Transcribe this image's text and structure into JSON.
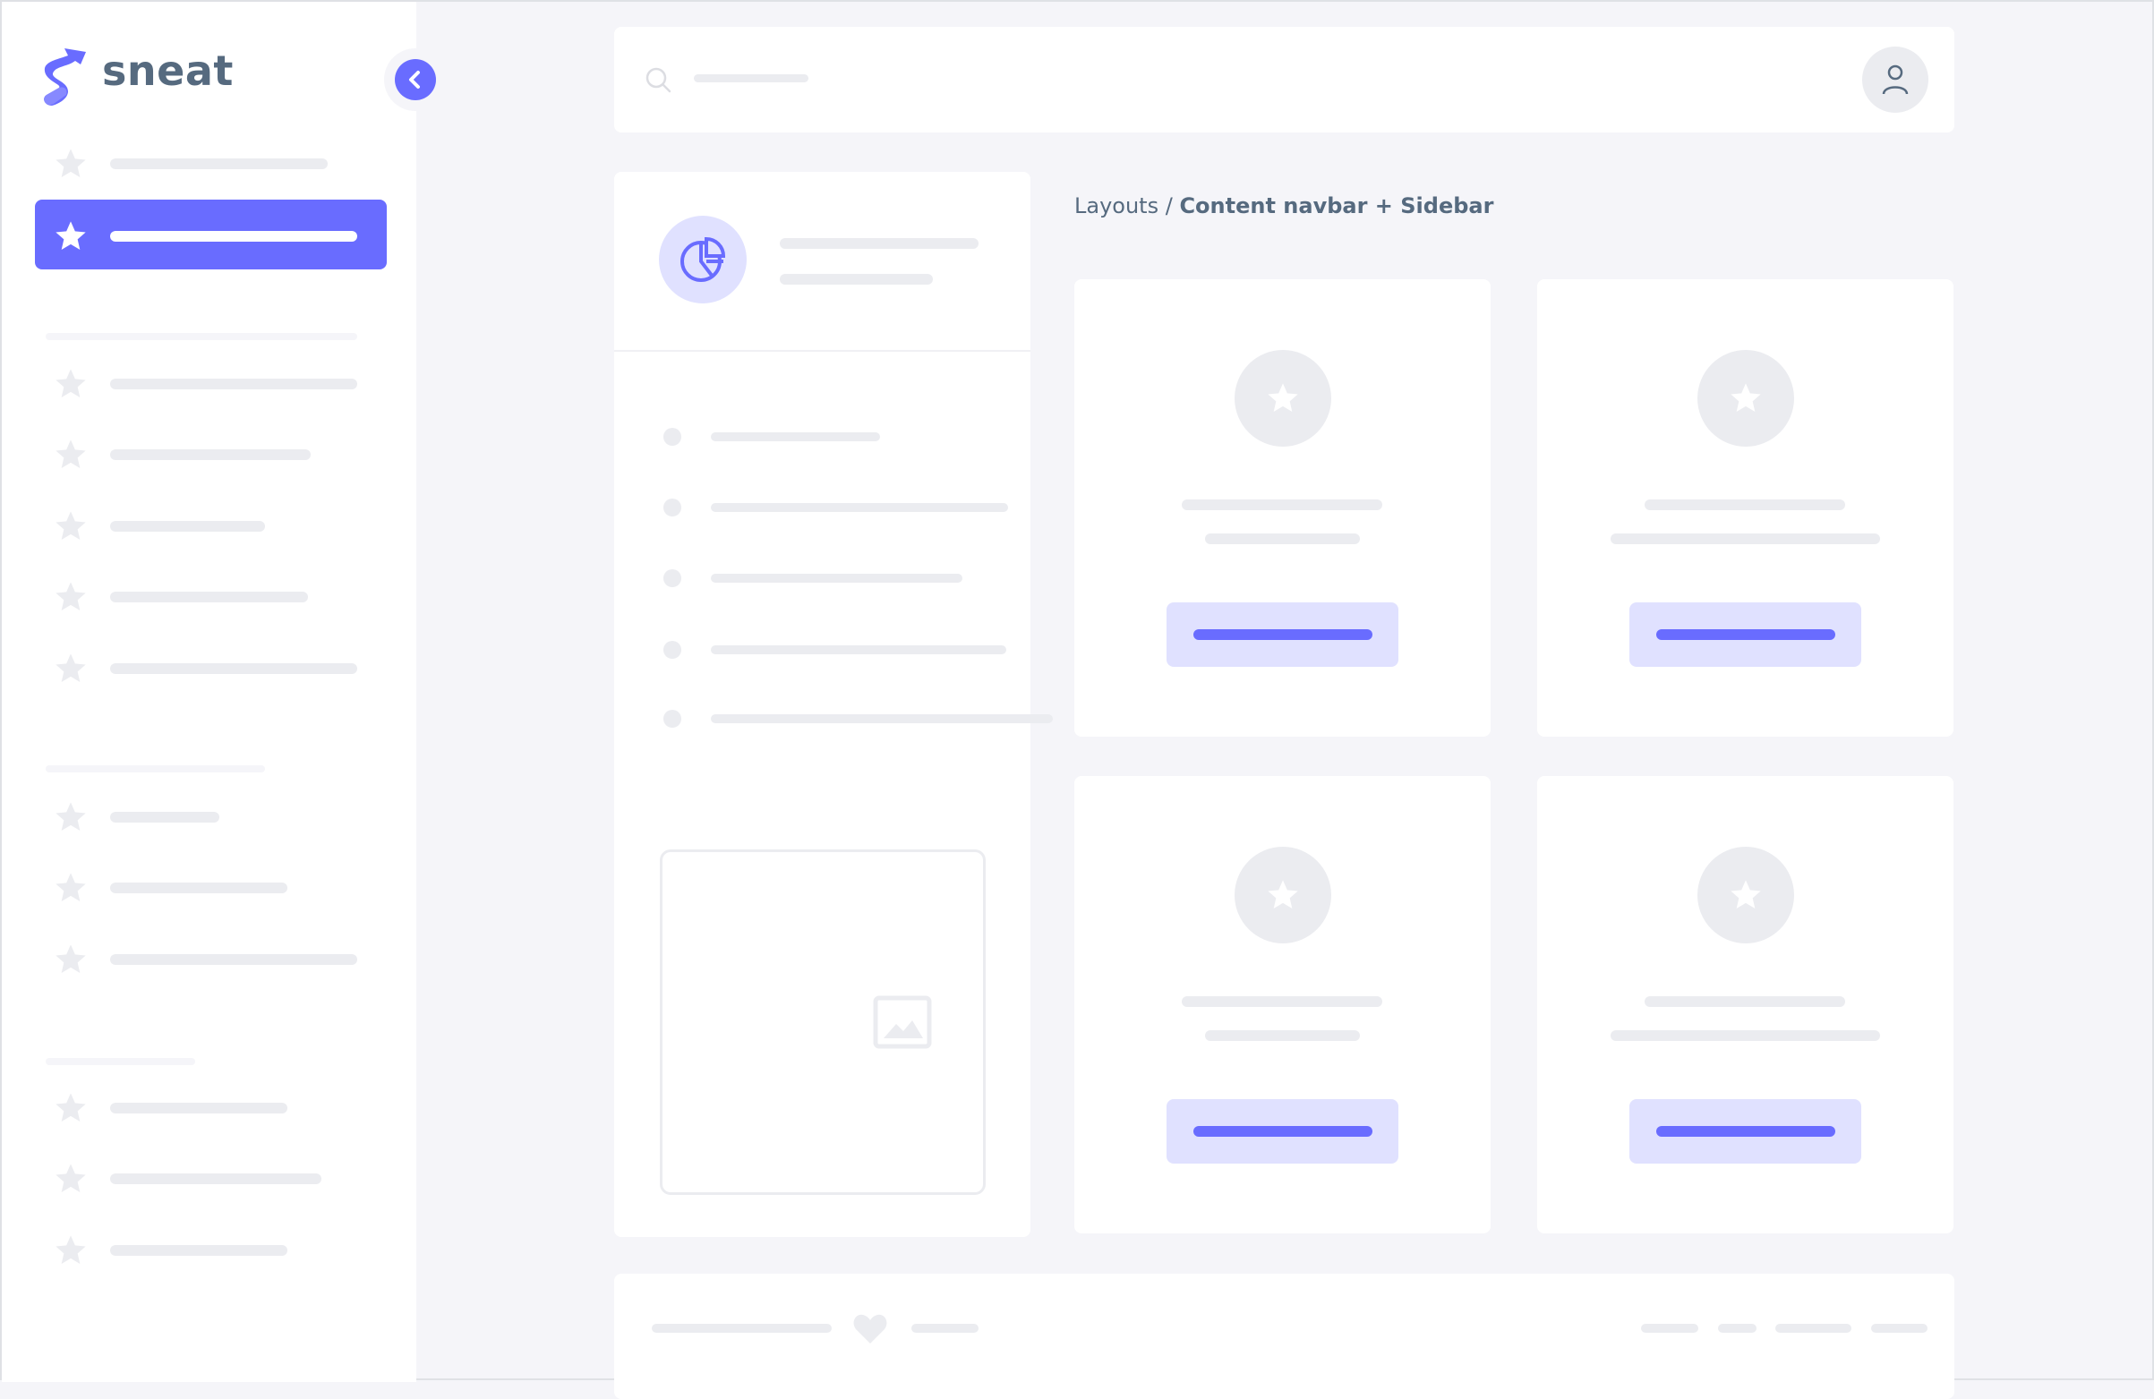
{
  "brand": {
    "logo_text": "sneat"
  },
  "breadcrumb": {
    "parent": "Layouts",
    "separator": " / ",
    "current": "Content navbar + Sidebar"
  },
  "sidebar": {
    "active_index": 1,
    "icons": "star-icon",
    "collapse_icon": "chevron-left-icon"
  },
  "navbar": {
    "search_icon": "search-icon",
    "avatar_icon": "user-icon"
  },
  "cards": [
    {
      "icon": "star-icon",
      "button": "primary"
    },
    {
      "icon": "star-icon",
      "button": "primary"
    },
    {
      "icon": "star-icon",
      "button": "primary"
    },
    {
      "icon": "star-icon",
      "button": "primary"
    }
  ],
  "footer": {
    "icon": "heart-icon"
  },
  "colors": {
    "primary": "#696cff",
    "primary_light": "#e0e1ff",
    "text": "#566a7f",
    "background": "#f5f5f9",
    "placeholder": "#ebecf0"
  }
}
